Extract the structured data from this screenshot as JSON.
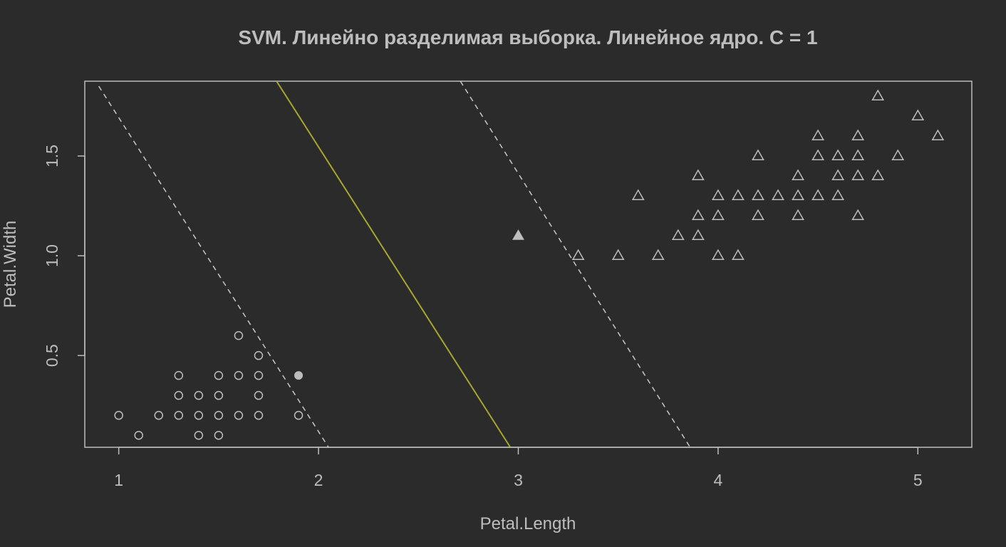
{
  "chart_data": {
    "type": "scatter",
    "title": "SVM. Линейно разделимая выборка. Линейное ядро. C = 1",
    "xlabel": "Petal.Length",
    "ylabel": "Petal.Width",
    "xlim": [
      0.83,
      5.27
    ],
    "ylim": [
      0.04,
      1.875
    ],
    "x_ticks": [
      "1",
      "2",
      "3",
      "4",
      "5"
    ],
    "y_ticks": [
      "0.5",
      "1.0",
      "1.5"
    ],
    "colors": {
      "background": "#2b2b2b",
      "foreground": "#bdbdbd",
      "decision_boundary": "#a7a62f",
      "margin": "#c8c8c8"
    },
    "series": [
      {
        "marker": "circle",
        "points": [
          [
            1.0,
            0.2
          ],
          [
            1.1,
            0.1
          ],
          [
            1.2,
            0.2
          ],
          [
            1.3,
            0.2
          ],
          [
            1.3,
            0.3
          ],
          [
            1.3,
            0.4
          ],
          [
            1.4,
            0.1
          ],
          [
            1.4,
            0.2
          ],
          [
            1.4,
            0.3
          ],
          [
            1.5,
            0.1
          ],
          [
            1.5,
            0.2
          ],
          [
            1.5,
            0.3
          ],
          [
            1.5,
            0.4
          ],
          [
            1.6,
            0.2
          ],
          [
            1.6,
            0.4
          ],
          [
            1.6,
            0.6
          ],
          [
            1.7,
            0.2
          ],
          [
            1.7,
            0.3
          ],
          [
            1.7,
            0.4
          ],
          [
            1.7,
            0.5
          ],
          [
            1.9,
            0.2
          ]
        ]
      },
      {
        "marker": "triangle",
        "points": [
          [
            3.3,
            1.0
          ],
          [
            3.5,
            1.0
          ],
          [
            3.6,
            1.3
          ],
          [
            3.7,
            1.0
          ],
          [
            3.8,
            1.1
          ],
          [
            3.9,
            1.1
          ],
          [
            3.9,
            1.2
          ],
          [
            3.9,
            1.4
          ],
          [
            4.0,
            1.0
          ],
          [
            4.0,
            1.2
          ],
          [
            4.0,
            1.3
          ],
          [
            4.1,
            1.0
          ],
          [
            4.1,
            1.3
          ],
          [
            4.2,
            1.2
          ],
          [
            4.2,
            1.3
          ],
          [
            4.2,
            1.5
          ],
          [
            4.3,
            1.3
          ],
          [
            4.4,
            1.2
          ],
          [
            4.4,
            1.3
          ],
          [
            4.4,
            1.4
          ],
          [
            4.5,
            1.3
          ],
          [
            4.5,
            1.5
          ],
          [
            4.5,
            1.6
          ],
          [
            4.6,
            1.3
          ],
          [
            4.6,
            1.4
          ],
          [
            4.6,
            1.5
          ],
          [
            4.7,
            1.2
          ],
          [
            4.7,
            1.4
          ],
          [
            4.7,
            1.5
          ],
          [
            4.7,
            1.6
          ],
          [
            4.8,
            1.4
          ],
          [
            4.8,
            1.8
          ],
          [
            4.9,
            1.5
          ],
          [
            5.0,
            1.7
          ],
          [
            5.1,
            1.6
          ]
        ]
      }
    ],
    "support_vectors": [
      {
        "marker": "circle",
        "x": 1.9,
        "y": 0.4
      },
      {
        "marker": "triangle",
        "x": 3.0,
        "y": 1.1
      }
    ],
    "lines": [
      {
        "style": "solid",
        "from": [
          1.79,
          1.875
        ],
        "to": [
          2.96,
          0.04
        ]
      },
      {
        "style": "dashed",
        "from": [
          0.9,
          1.85
        ],
        "to": [
          2.05,
          0.04
        ]
      },
      {
        "style": "dashed",
        "from": [
          2.71,
          1.875
        ],
        "to": [
          3.86,
          0.04
        ]
      }
    ]
  }
}
